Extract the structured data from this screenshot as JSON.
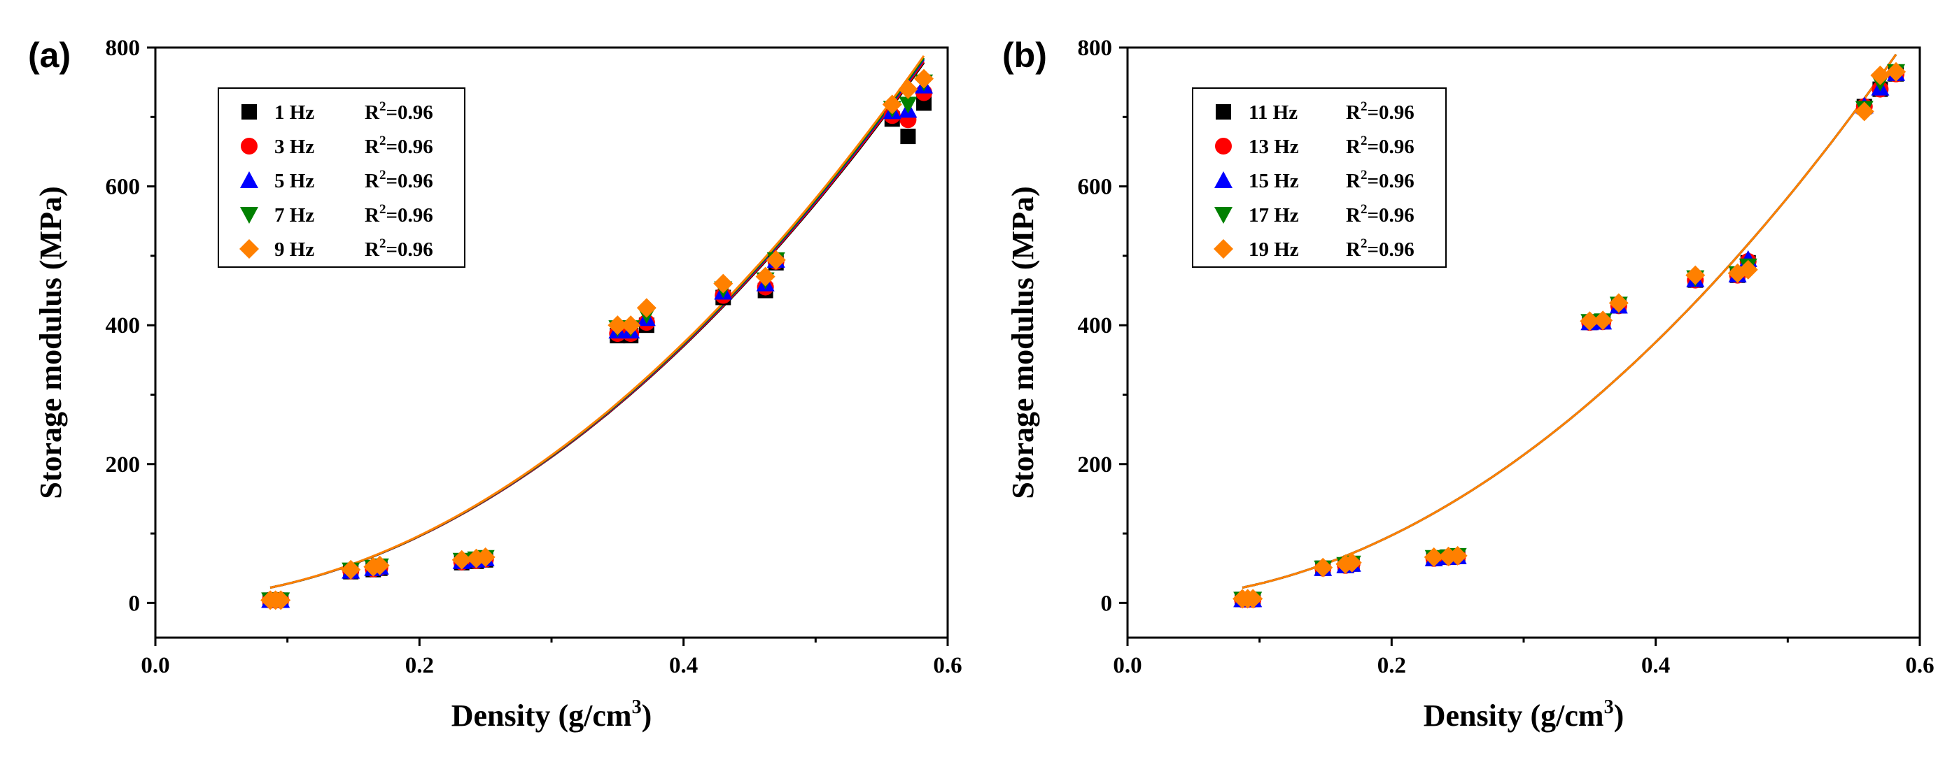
{
  "chart_data": [
    {
      "type": "scatter",
      "panel_label": "(a)",
      "xlabel": "Density (g/cm",
      "xlabel_sup": "3",
      "xlabel_end": ")",
      "ylabel": "Storage modulus (MPa)",
      "xlim": [
        0.0,
        0.6
      ],
      "ylim": [
        -50,
        800
      ],
      "xticks": [
        0.0,
        0.2,
        0.4,
        0.6
      ],
      "xtick_labels": [
        "0.0",
        "0.2",
        "0.4",
        "0.6"
      ],
      "yticks": [
        0,
        200,
        400,
        600,
        800
      ],
      "ytick_labels": [
        "0",
        "200",
        "400",
        "600",
        "800"
      ],
      "x": [
        0.087,
        0.091,
        0.095,
        0.148,
        0.165,
        0.17,
        0.232,
        0.243,
        0.25,
        0.35,
        0.36,
        0.372,
        0.43,
        0.462,
        0.47,
        0.558,
        0.57,
        0.582
      ],
      "series": [
        {
          "name": "1 Hz",
          "r2_label": "R",
          "r2_sup": "2",
          "r2_value": "=0.96",
          "color": "#000000",
          "marker": "square",
          "values": [
            4,
            4,
            4,
            45,
            48,
            50,
            58,
            60,
            62,
            385,
            385,
            400,
            440,
            450,
            490,
            697,
            672,
            720
          ],
          "fit": [
            22,
            778
          ]
        },
        {
          "name": "3 Hz",
          "r2_label": "R",
          "r2_sup": "2",
          "r2_value": "=0.96",
          "color": "#ff0000",
          "marker": "circle",
          "values": [
            4,
            4,
            4,
            46,
            49,
            51,
            59,
            61,
            63,
            388,
            388,
            404,
            443,
            455,
            492,
            702,
            696,
            735
          ],
          "fit": [
            22,
            780
          ]
        },
        {
          "name": "5 Hz",
          "r2_label": "R",
          "r2_sup": "2",
          "r2_value": "=0.96",
          "color": "#0000ff",
          "marker": "triangle-up",
          "values": [
            4,
            4,
            4,
            46,
            50,
            52,
            60,
            62,
            64,
            392,
            392,
            410,
            448,
            460,
            494,
            708,
            710,
            745
          ],
          "fit": [
            22,
            783
          ]
        },
        {
          "name": "7 Hz",
          "r2_label": "R",
          "r2_sup": "2",
          "r2_value": "=0.96",
          "color": "#008000",
          "marker": "triangle-down",
          "values": [
            4,
            4,
            4,
            47,
            51,
            53,
            61,
            63,
            65,
            396,
            396,
            415,
            452,
            465,
            494,
            712,
            718,
            750
          ],
          "fit": [
            22,
            785
          ]
        },
        {
          "name": "9 Hz",
          "r2_label": "R",
          "r2_sup": "2",
          "r2_value": "=0.96",
          "color": "#ff8000",
          "marker": "diamond",
          "values": [
            4,
            4,
            4,
            48,
            52,
            54,
            62,
            64,
            66,
            400,
            400,
            425,
            460,
            470,
            494,
            718,
            740,
            755
          ],
          "fit": [
            22,
            788
          ]
        }
      ]
    },
    {
      "type": "scatter",
      "panel_label": "(b)",
      "xlabel": "Density (g/cm",
      "xlabel_sup": "3",
      "xlabel_end": ")",
      "ylabel": "Storage modulus (MPa)",
      "xlim": [
        0.0,
        0.6
      ],
      "ylim": [
        -50,
        800
      ],
      "xticks": [
        0.0,
        0.2,
        0.4,
        0.6
      ],
      "xtick_labels": [
        "0.0",
        "0.2",
        "0.4",
        "0.6"
      ],
      "yticks": [
        0,
        200,
        400,
        600,
        800
      ],
      "ytick_labels": [
        "0",
        "200",
        "400",
        "600",
        "800"
      ],
      "x": [
        0.087,
        0.091,
        0.095,
        0.148,
        0.165,
        0.17,
        0.232,
        0.243,
        0.25,
        0.35,
        0.36,
        0.372,
        0.43,
        0.462,
        0.47,
        0.558,
        0.57,
        0.582
      ],
      "series": [
        {
          "name": "11 Hz",
          "r2_label": "R",
          "r2_sup": "2",
          "r2_value": "=0.96",
          "color": "#000000",
          "marker": "square",
          "values": [
            5,
            5,
            5,
            50,
            54,
            56,
            64,
            66,
            67,
            404,
            405,
            428,
            465,
            472,
            490,
            715,
            740,
            762
          ],
          "fit": [
            22,
            790
          ]
        },
        {
          "name": "13 Hz",
          "r2_label": "R",
          "r2_sup": "2",
          "r2_value": "=0.96",
          "color": "#ff0000",
          "marker": "circle",
          "values": [
            5,
            5,
            5,
            50,
            54,
            56,
            64,
            66,
            67,
            404,
            405,
            428,
            465,
            472,
            492,
            715,
            740,
            762
          ],
          "fit": [
            22,
            790
          ]
        },
        {
          "name": "15 Hz",
          "r2_label": "R",
          "r2_sup": "2",
          "r2_value": "=0.96",
          "color": "#0000ff",
          "marker": "triangle-up",
          "values": [
            5,
            5,
            5,
            50,
            54,
            56,
            64,
            66,
            67,
            404,
            405,
            428,
            466,
            473,
            495,
            716,
            742,
            763
          ],
          "fit": [
            22,
            790
          ]
        },
        {
          "name": "17 Hz",
          "r2_label": "R",
          "r2_sup": "2",
          "r2_value": "=0.96",
          "color": "#008000",
          "marker": "triangle-down",
          "values": [
            5,
            5,
            5,
            50,
            55,
            57,
            65,
            66,
            68,
            405,
            406,
            430,
            468,
            474,
            485,
            712,
            750,
            765
          ],
          "fit": [
            22,
            790
          ]
        },
        {
          "name": "19 Hz",
          "r2_label": "R",
          "r2_sup": "2",
          "r2_value": "=0.96",
          "color": "#ff8000",
          "marker": "diamond",
          "values": [
            6,
            6,
            6,
            51,
            56,
            58,
            66,
            67,
            68,
            406,
            407,
            432,
            472,
            475,
            480,
            708,
            760,
            765
          ],
          "fit": [
            22,
            790
          ]
        }
      ]
    }
  ]
}
